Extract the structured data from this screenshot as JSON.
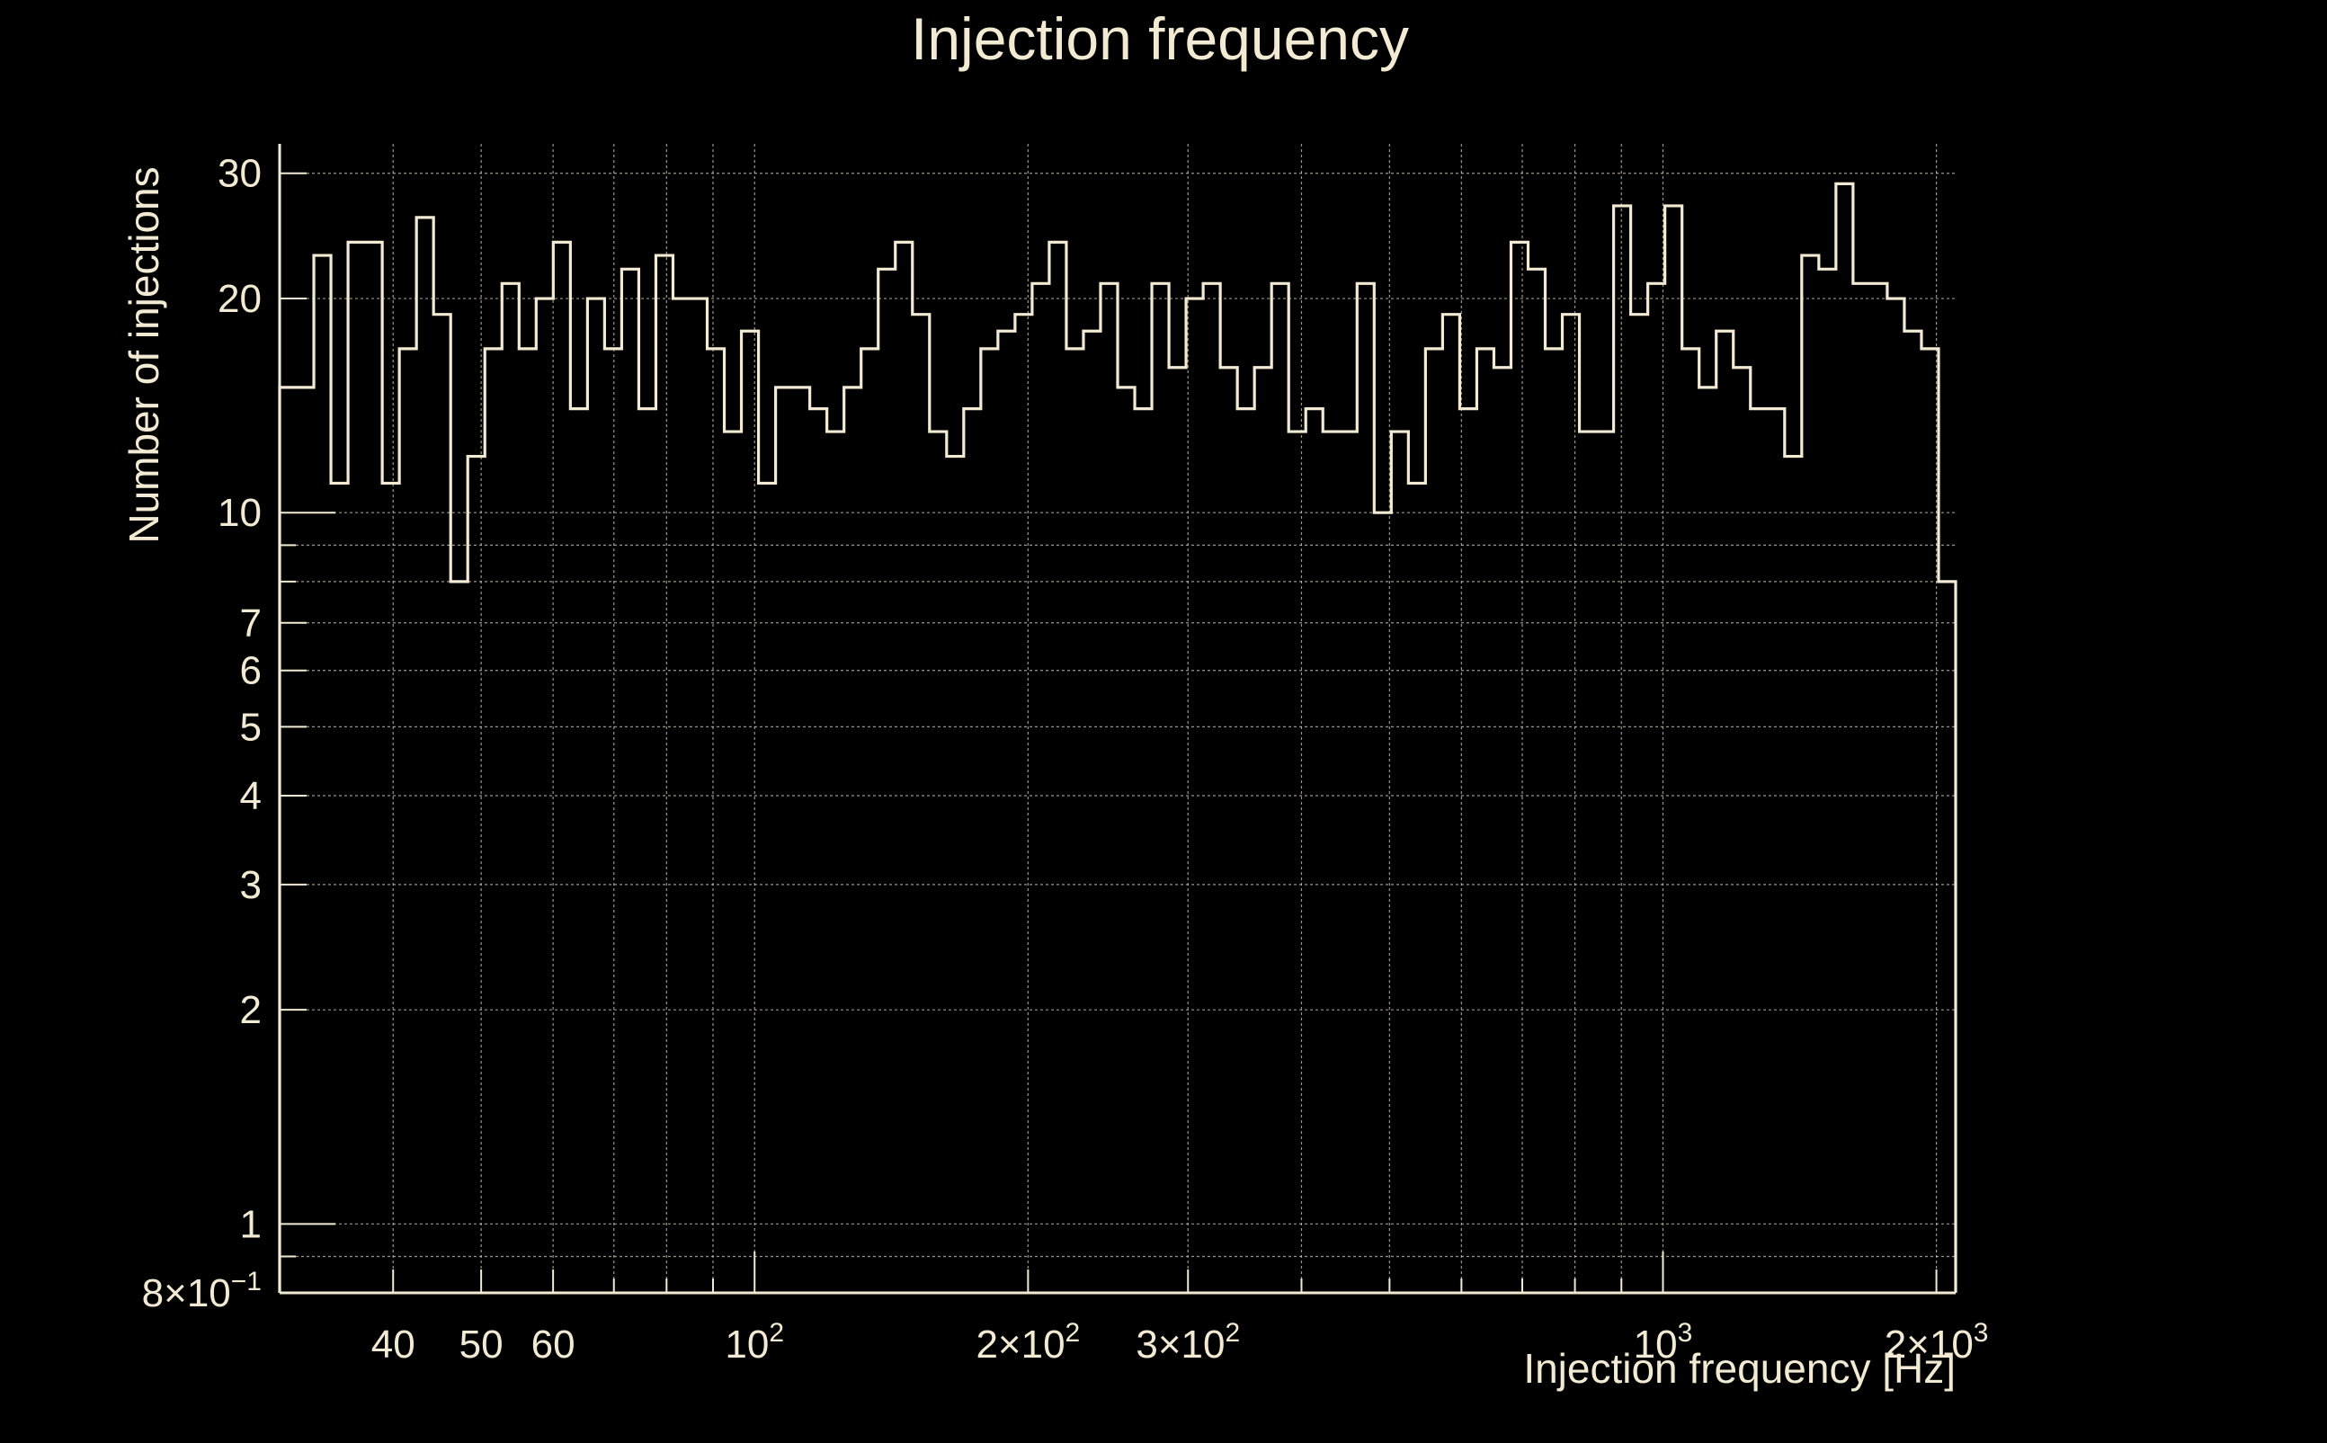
{
  "colors": {
    "background": "#000000",
    "foreground": "#f3ead3",
    "grid": "#cfc7b3"
  },
  "chart_data": {
    "type": "histogram",
    "title": "Injection frequency",
    "xlabel": "Injection frequency [Hz]",
    "ylabel": "Number of injections",
    "x_scale": "log",
    "y_scale": "log",
    "xlim": [
      30,
      2100
    ],
    "ylim": [
      0.8,
      33
    ],
    "grid": true,
    "x_major_ticks": [
      {
        "value": 40,
        "base": "40",
        "exp": ""
      },
      {
        "value": 50,
        "base": "50",
        "exp": ""
      },
      {
        "value": 60,
        "base": "60",
        "exp": ""
      },
      {
        "value": 100,
        "base": "10",
        "exp": "2"
      },
      {
        "value": 200,
        "base": "2×10",
        "exp": "2"
      },
      {
        "value": 300,
        "base": "3×10",
        "exp": "2"
      },
      {
        "value": 1000,
        "base": "10",
        "exp": "3"
      },
      {
        "value": 2000,
        "base": "2×10",
        "exp": "3"
      }
    ],
    "x_minor_gridlines": [
      70,
      80,
      90,
      400,
      500,
      600,
      700,
      800,
      900
    ],
    "y_major_ticks": [
      {
        "value": 0.8,
        "base": "8×10",
        "exp": "−1"
      },
      {
        "value": 1,
        "base": "1",
        "exp": ""
      },
      {
        "value": 2,
        "base": "2",
        "exp": ""
      },
      {
        "value": 3,
        "base": "3",
        "exp": ""
      },
      {
        "value": 4,
        "base": "4",
        "exp": ""
      },
      {
        "value": 5,
        "base": "5",
        "exp": ""
      },
      {
        "value": 6,
        "base": "6",
        "exp": ""
      },
      {
        "value": 7,
        "base": "7",
        "exp": ""
      },
      {
        "value": 10,
        "base": "10",
        "exp": ""
      },
      {
        "value": 20,
        "base": "20",
        "exp": ""
      },
      {
        "value": 30,
        "base": "30",
        "exp": ""
      }
    ],
    "y_minor_gridlines": [
      0.9,
      8,
      9
    ],
    "bin_start": 30,
    "bin_end": 2100,
    "counts": [
      15,
      15,
      23,
      11,
      24,
      24,
      11,
      17,
      26,
      19,
      8,
      12,
      17,
      21,
      17,
      20,
      24,
      14,
      20,
      17,
      22,
      14,
      23,
      20,
      20,
      17,
      13,
      18,
      11,
      15,
      15,
      14,
      13,
      15,
      17,
      22,
      24,
      19,
      13,
      12,
      14,
      17,
      18,
      19,
      21,
      24,
      17,
      18,
      21,
      15,
      14,
      21,
      16,
      20,
      21,
      16,
      14,
      16,
      21,
      13,
      14,
      13,
      13,
      21,
      10,
      13,
      11,
      17,
      19,
      14,
      17,
      16,
      24,
      22,
      17,
      19,
      13,
      13,
      27,
      19,
      21,
      27,
      17,
      15,
      18,
      16,
      14,
      14,
      12,
      23,
      22,
      29,
      21,
      21,
      20,
      18,
      17,
      8
    ]
  }
}
